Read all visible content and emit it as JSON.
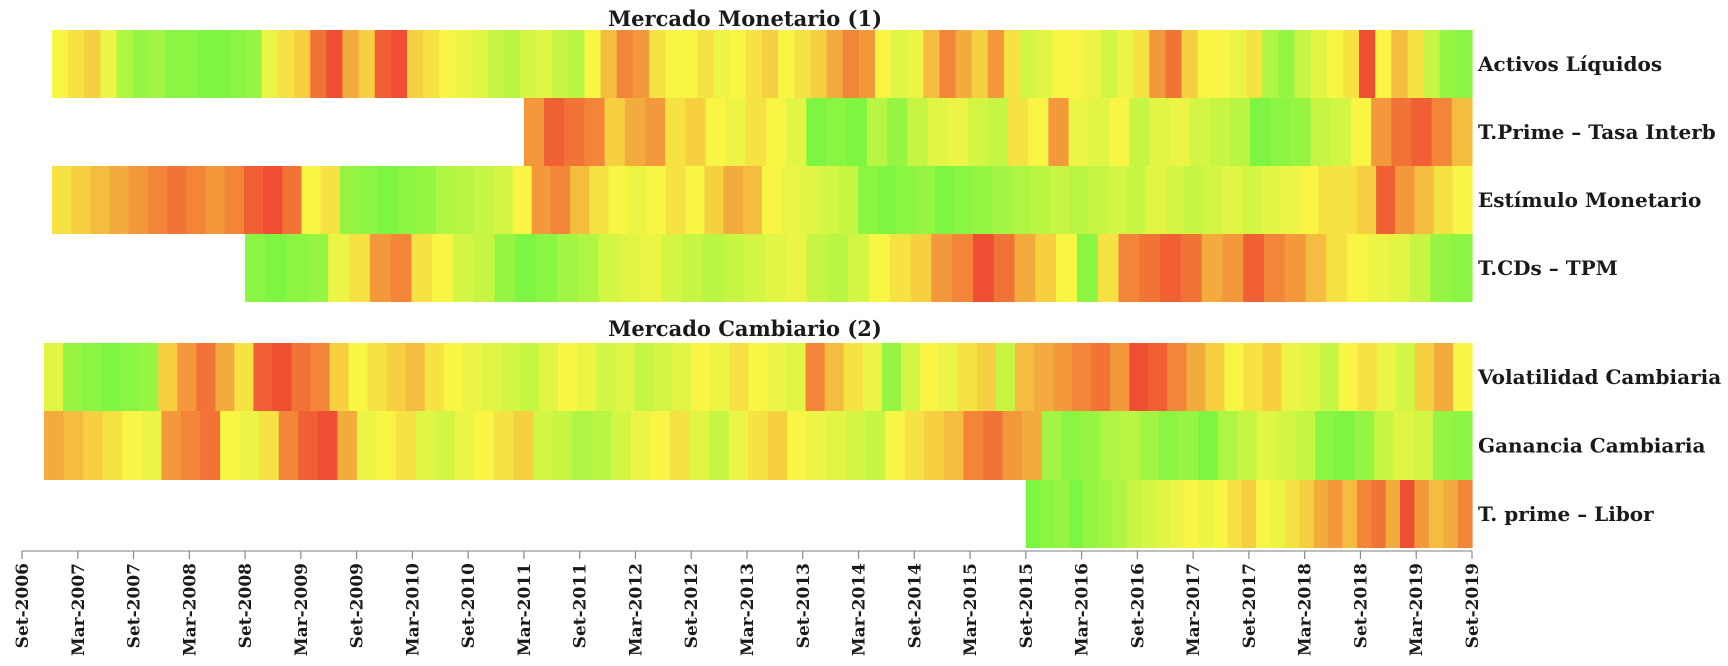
{
  "chart_data": {
    "type": "heatmap",
    "color_scale": {
      "low": "#7ef542",
      "mid": "#f8f545",
      "high": "#ee3b30"
    },
    "x_ticks": [
      "Set-2006",
      "Mar-2007",
      "Set-2007",
      "Mar-2008",
      "Set-2008",
      "Mar-2009",
      "Set-2009",
      "Mar-2010",
      "Set-2010",
      "Mar-2011",
      "Set-2011",
      "Mar-2012",
      "Set-2012",
      "Mar-2013",
      "Set-2013",
      "Mar-2014",
      "Set-2014",
      "Mar-2015",
      "Set-2015",
      "Mar-2016",
      "Set-2016",
      "Mar-2017",
      "Set-2017",
      "Mar-2018",
      "Set-2018",
      "Mar-2019",
      "Set-2019"
    ],
    "panels": [
      {
        "title": "Mercado Monetario (1)",
        "rows": [
          {
            "name": "Activos Líquidos",
            "start": "Set-2006",
            "end": "Set-2019",
            "values": [
              0.5,
              0.55,
              0.6,
              0.45,
              0.2,
              0.1,
              0.15,
              0.05,
              0.05,
              0.0,
              0.0,
              0.05,
              0.1,
              0.45,
              0.55,
              0.6,
              0.85,
              0.95,
              0.7,
              0.6,
              0.9,
              0.95,
              0.6,
              0.55,
              0.5,
              0.45,
              0.4,
              0.3,
              0.25,
              0.35,
              0.4,
              0.3,
              0.25,
              0.5,
              0.65,
              0.8,
              0.75,
              0.55,
              0.5,
              0.5,
              0.55,
              0.45,
              0.5,
              0.55,
              0.6,
              0.5,
              0.55,
              0.6,
              0.7,
              0.8,
              0.75,
              0.5,
              0.4,
              0.45,
              0.65,
              0.8,
              0.7,
              0.6,
              0.75,
              0.55,
              0.35,
              0.4,
              0.5,
              0.5,
              0.45,
              0.35,
              0.45,
              0.55,
              0.75,
              0.85,
              0.6,
              0.5,
              0.5,
              0.45,
              0.55,
              0.2,
              0.1,
              0.3,
              0.4,
              0.5,
              0.55,
              0.95,
              0.5,
              0.65,
              0.55,
              0.3,
              0.1,
              0.05
            ]
          },
          {
            "name": "T.Prime – Tasa Interb",
            "start": "Mar-2011",
            "end": "Set-2019",
            "values": [
              0.75,
              0.9,
              0.85,
              0.8,
              0.6,
              0.7,
              0.75,
              0.55,
              0.6,
              0.5,
              0.45,
              0.55,
              0.5,
              0.4,
              0.0,
              0.05,
              0.0,
              0.25,
              0.1,
              0.3,
              0.4,
              0.45,
              0.35,
              0.3,
              0.55,
              0.5,
              0.75,
              0.45,
              0.4,
              0.5,
              0.3,
              0.4,
              0.45,
              0.35,
              0.3,
              0.25,
              0.0,
              0.05,
              0.1,
              0.3,
              0.35,
              0.5,
              0.75,
              0.85,
              0.9,
              0.8,
              0.65
            ]
          },
          {
            "name": "Estímulo Monetario",
            "start": "Set-2006",
            "end": "Set-2019",
            "values": [
              0.55,
              0.6,
              0.65,
              0.7,
              0.75,
              0.8,
              0.85,
              0.8,
              0.75,
              0.8,
              0.9,
              0.95,
              0.85,
              0.5,
              0.55,
              0.1,
              0.05,
              0.0,
              0.05,
              0.1,
              0.2,
              0.25,
              0.3,
              0.35,
              0.5,
              0.75,
              0.8,
              0.65,
              0.55,
              0.5,
              0.45,
              0.5,
              0.55,
              0.5,
              0.6,
              0.7,
              0.65,
              0.5,
              0.45,
              0.4,
              0.35,
              0.3,
              0.05,
              0.0,
              0.05,
              0.1,
              0.0,
              0.05,
              0.1,
              0.15,
              0.2,
              0.25,
              0.3,
              0.25,
              0.3,
              0.35,
              0.3,
              0.4,
              0.35,
              0.3,
              0.35,
              0.4,
              0.35,
              0.4,
              0.45,
              0.5,
              0.55,
              0.55,
              0.6,
              0.9,
              0.75,
              0.65,
              0.55,
              0.5
            ]
          },
          {
            "name": "T.CDs – TPM",
            "start": "Set-2008",
            "end": "Set-2019",
            "values": [
              0.05,
              0.0,
              0.05,
              0.1,
              0.45,
              0.55,
              0.75,
              0.8,
              0.55,
              0.5,
              0.35,
              0.3,
              0.1,
              0.0,
              0.05,
              0.15,
              0.2,
              0.35,
              0.4,
              0.45,
              0.35,
              0.3,
              0.25,
              0.3,
              0.35,
              0.4,
              0.45,
              0.3,
              0.25,
              0.35,
              0.5,
              0.55,
              0.6,
              0.75,
              0.8,
              0.95,
              0.85,
              0.7,
              0.6,
              0.5,
              0.05,
              0.55,
              0.8,
              0.85,
              0.9,
              0.85,
              0.7,
              0.75,
              0.9,
              0.8,
              0.75,
              0.65,
              0.55,
              0.5,
              0.45,
              0.4,
              0.3,
              0.1,
              0.05
            ]
          }
        ]
      },
      {
        "title": "Mercado Cambiario (2)",
        "rows": [
          {
            "name": "Volatilidad Cambiaria",
            "start": "Set-2006",
            "end": "Set-2019",
            "values": [
              0.4,
              0.1,
              0.05,
              0.0,
              0.05,
              0.1,
              0.6,
              0.75,
              0.85,
              0.7,
              0.55,
              0.9,
              0.95,
              0.85,
              0.8,
              0.6,
              0.5,
              0.55,
              0.6,
              0.65,
              0.55,
              0.5,
              0.45,
              0.4,
              0.35,
              0.3,
              0.4,
              0.5,
              0.45,
              0.35,
              0.4,
              0.3,
              0.35,
              0.4,
              0.5,
              0.45,
              0.55,
              0.5,
              0.45,
              0.4,
              0.8,
              0.65,
              0.55,
              0.45,
              0.1,
              0.35,
              0.5,
              0.45,
              0.55,
              0.6,
              0.3,
              0.65,
              0.7,
              0.75,
              0.8,
              0.85,
              0.75,
              0.95,
              0.9,
              0.8,
              0.7,
              0.6,
              0.5,
              0.55,
              0.6,
              0.45,
              0.4,
              0.3,
              0.5,
              0.55,
              0.45,
              0.35,
              0.6,
              0.7,
              0.5
            ]
          },
          {
            "name": "Ganancia Cambiaria",
            "start": "Set-2006",
            "end": "Set-2019",
            "values": [
              0.7,
              0.65,
              0.6,
              0.55,
              0.5,
              0.45,
              0.75,
              0.8,
              0.85,
              0.5,
              0.45,
              0.55,
              0.8,
              0.9,
              0.95,
              0.7,
              0.45,
              0.5,
              0.55,
              0.4,
              0.35,
              0.45,
              0.5,
              0.55,
              0.6,
              0.35,
              0.3,
              0.2,
              0.25,
              0.35,
              0.45,
              0.5,
              0.55,
              0.4,
              0.3,
              0.45,
              0.55,
              0.6,
              0.5,
              0.45,
              0.4,
              0.35,
              0.3,
              0.5,
              0.55,
              0.6,
              0.65,
              0.8,
              0.85,
              0.75,
              0.7,
              0.15,
              0.05,
              0.1,
              0.2,
              0.25,
              0.15,
              0.05,
              0.1,
              0.0,
              0.2,
              0.3,
              0.4,
              0.35,
              0.3,
              0.05,
              0.0,
              0.1,
              0.3,
              0.4,
              0.35,
              0.1,
              0.05
            ]
          },
          {
            "name": "T. prime – Libor",
            "start": "Set-2015",
            "end": "Set-2019",
            "values": [
              0.0,
              0.05,
              0.1,
              0.0,
              0.1,
              0.15,
              0.2,
              0.3,
              0.35,
              0.4,
              0.45,
              0.5,
              0.45,
              0.5,
              0.55,
              0.6,
              0.5,
              0.45,
              0.55,
              0.6,
              0.7,
              0.75,
              0.65,
              0.8,
              0.85,
              0.7,
              0.95,
              0.75,
              0.65,
              0.7,
              0.8
            ]
          }
        ]
      }
    ]
  }
}
